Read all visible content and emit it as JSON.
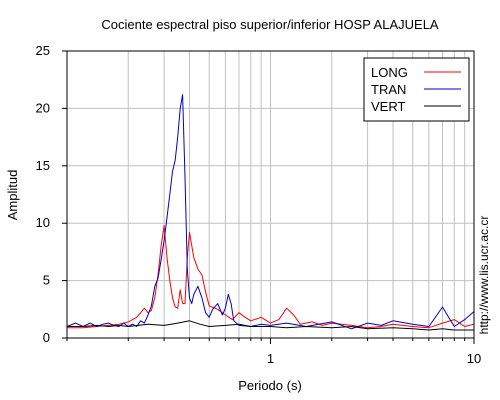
{
  "chart_data": {
    "type": "line",
    "title": "Cociente espectral piso superior/inferior  HOSP ALAJUELA",
    "xlabel": "Periodo (s)",
    "ylabel": "Amplitud",
    "x_scale": "log",
    "xlim": [
      0.1,
      10
    ],
    "ylim": [
      0,
      25
    ],
    "xticks": [
      1,
      10
    ],
    "yticks": [
      0,
      5,
      10,
      15,
      20,
      25
    ],
    "grid": true,
    "legend": "top-right",
    "watermark": "http://www.lis.ucr.ac.cr",
    "series": [
      {
        "name": "LONG",
        "color": "#ff0000",
        "points": [
          [
            0.1,
            0.9
          ],
          [
            0.12,
            0.9
          ],
          [
            0.14,
            1.0
          ],
          [
            0.16,
            1.1
          ],
          [
            0.18,
            1.2
          ],
          [
            0.2,
            1.4
          ],
          [
            0.22,
            1.8
          ],
          [
            0.24,
            2.6
          ],
          [
            0.25,
            2.2
          ],
          [
            0.26,
            2.4
          ],
          [
            0.27,
            3.5
          ],
          [
            0.28,
            5.5
          ],
          [
            0.29,
            8.0
          ],
          [
            0.3,
            9.8
          ],
          [
            0.31,
            7.0
          ],
          [
            0.32,
            5.0
          ],
          [
            0.33,
            3.5
          ],
          [
            0.34,
            2.7
          ],
          [
            0.35,
            2.6
          ],
          [
            0.36,
            4.2
          ],
          [
            0.37,
            3.0
          ],
          [
            0.38,
            3.0
          ],
          [
            0.39,
            7.0
          ],
          [
            0.4,
            9.2
          ],
          [
            0.42,
            7.0
          ],
          [
            0.44,
            6.0
          ],
          [
            0.46,
            5.5
          ],
          [
            0.48,
            4.0
          ],
          [
            0.5,
            2.8
          ],
          [
            0.55,
            2.5
          ],
          [
            0.6,
            2.0
          ],
          [
            0.65,
            1.6
          ],
          [
            0.7,
            2.2
          ],
          [
            0.75,
            1.8
          ],
          [
            0.8,
            1.5
          ],
          [
            0.9,
            1.8
          ],
          [
            1.0,
            1.3
          ],
          [
            1.1,
            1.6
          ],
          [
            1.2,
            2.6
          ],
          [
            1.3,
            2.0
          ],
          [
            1.4,
            1.2
          ],
          [
            1.6,
            1.4
          ],
          [
            1.8,
            1.1
          ],
          [
            2.0,
            1.3
          ],
          [
            2.5,
            1.1
          ],
          [
            3.0,
            0.9
          ],
          [
            3.5,
            1.0
          ],
          [
            4.0,
            1.2
          ],
          [
            5.0,
            1.0
          ],
          [
            6.0,
            0.9
          ],
          [
            7.0,
            1.3
          ],
          [
            8.0,
            1.6
          ],
          [
            9.0,
            1.0
          ],
          [
            10.0,
            1.2
          ]
        ]
      },
      {
        "name": "TRAN",
        "color": "#0000cc",
        "points": [
          [
            0.1,
            1.0
          ],
          [
            0.11,
            1.3
          ],
          [
            0.12,
            1.0
          ],
          [
            0.13,
            1.3
          ],
          [
            0.14,
            1.0
          ],
          [
            0.15,
            1.2
          ],
          [
            0.16,
            1.3
          ],
          [
            0.17,
            1.1
          ],
          [
            0.18,
            1.0
          ],
          [
            0.19,
            1.3
          ],
          [
            0.2,
            1.0
          ],
          [
            0.21,
            1.2
          ],
          [
            0.22,
            1.0
          ],
          [
            0.23,
            1.5
          ],
          [
            0.24,
            1.3
          ],
          [
            0.25,
            2.0
          ],
          [
            0.26,
            2.8
          ],
          [
            0.27,
            4.5
          ],
          [
            0.28,
            5.2
          ],
          [
            0.29,
            6.8
          ],
          [
            0.3,
            8.5
          ],
          [
            0.31,
            10.5
          ],
          [
            0.32,
            12.5
          ],
          [
            0.33,
            14.5
          ],
          [
            0.34,
            15.5
          ],
          [
            0.35,
            17.5
          ],
          [
            0.36,
            20.0
          ],
          [
            0.37,
            21.2
          ],
          [
            0.38,
            14.0
          ],
          [
            0.39,
            6.0
          ],
          [
            0.4,
            3.5
          ],
          [
            0.41,
            3.0
          ],
          [
            0.42,
            3.8
          ],
          [
            0.44,
            4.5
          ],
          [
            0.46,
            3.5
          ],
          [
            0.48,
            2.2
          ],
          [
            0.5,
            1.8
          ],
          [
            0.52,
            2.5
          ],
          [
            0.55,
            3.0
          ],
          [
            0.58,
            2.0
          ],
          [
            0.6,
            2.6
          ],
          [
            0.62,
            3.8
          ],
          [
            0.64,
            3.0
          ],
          [
            0.66,
            1.5
          ],
          [
            0.7,
            1.1
          ],
          [
            0.8,
            1.0
          ],
          [
            0.9,
            1.2
          ],
          [
            1.0,
            1.1
          ],
          [
            1.2,
            1.3
          ],
          [
            1.5,
            1.0
          ],
          [
            2.0,
            1.4
          ],
          [
            2.5,
            0.8
          ],
          [
            3.0,
            1.3
          ],
          [
            3.5,
            1.1
          ],
          [
            4.0,
            1.5
          ],
          [
            5.0,
            1.2
          ],
          [
            6.0,
            1.0
          ],
          [
            7.0,
            2.7
          ],
          [
            7.5,
            1.8
          ],
          [
            8.0,
            1.0
          ],
          [
            9.0,
            1.6
          ],
          [
            10.0,
            2.3
          ]
        ]
      },
      {
        "name": "VERT",
        "color": "#000000",
        "points": [
          [
            0.1,
            1.0
          ],
          [
            0.12,
            1.0
          ],
          [
            0.14,
            1.1
          ],
          [
            0.16,
            1.0
          ],
          [
            0.18,
            1.1
          ],
          [
            0.2,
            1.0
          ],
          [
            0.25,
            1.2
          ],
          [
            0.3,
            1.1
          ],
          [
            0.35,
            1.3
          ],
          [
            0.4,
            1.5
          ],
          [
            0.45,
            1.2
          ],
          [
            0.5,
            1.0
          ],
          [
            0.6,
            1.1
          ],
          [
            0.7,
            1.2
          ],
          [
            0.8,
            1.0
          ],
          [
            1.0,
            1.0
          ],
          [
            1.2,
            0.9
          ],
          [
            1.5,
            1.0
          ],
          [
            2.0,
            0.9
          ],
          [
            2.5,
            1.0
          ],
          [
            3.0,
            0.8
          ],
          [
            4.0,
            0.9
          ],
          [
            5.0,
            0.8
          ],
          [
            6.0,
            0.7
          ],
          [
            7.0,
            0.8
          ],
          [
            8.0,
            0.7
          ],
          [
            10.0,
            0.7
          ]
        ]
      }
    ]
  }
}
